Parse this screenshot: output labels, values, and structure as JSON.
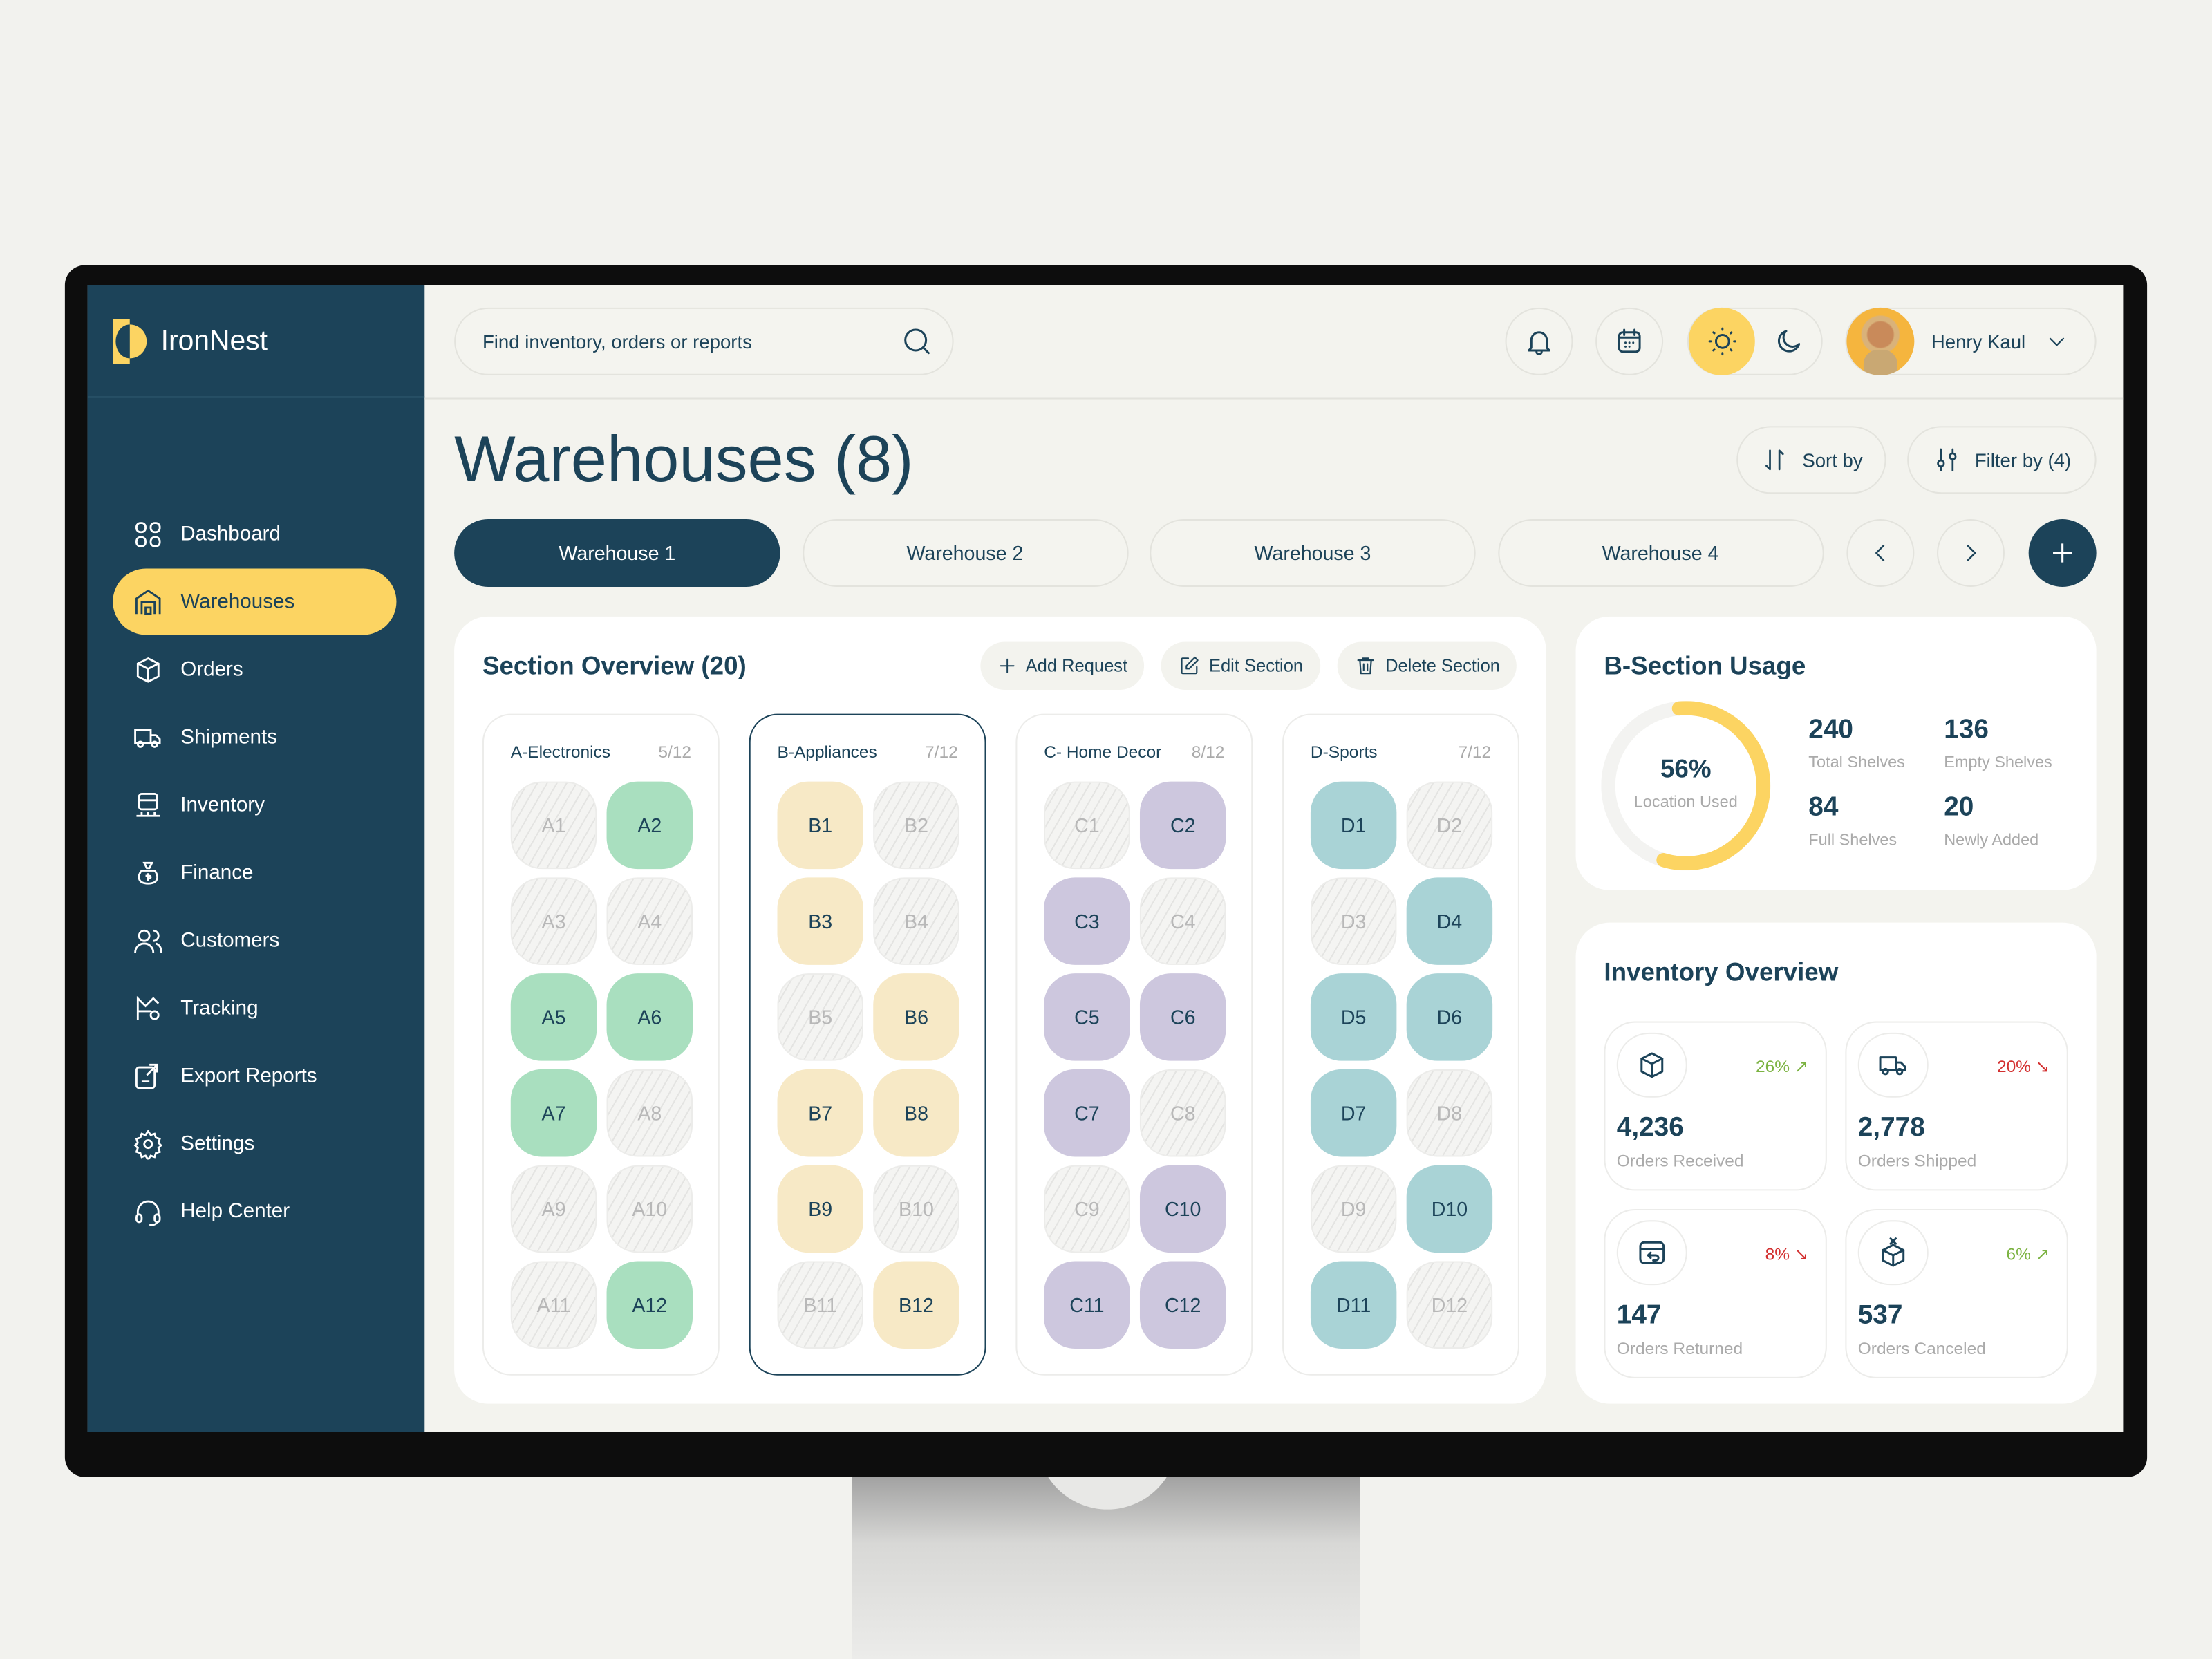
{
  "app": {
    "name": "IronNest",
    "brand_color": "#fcd462",
    "primary_color": "#1c4359"
  },
  "sidebar": {
    "items": [
      {
        "label": "Dashboard",
        "icon": "grid-icon"
      },
      {
        "label": "Warehouses",
        "icon": "warehouse-icon",
        "active": true
      },
      {
        "label": "Orders",
        "icon": "box-icon"
      },
      {
        "label": "Shipments",
        "icon": "truck-icon"
      },
      {
        "label": "Inventory",
        "icon": "inventory-icon"
      },
      {
        "label": "Finance",
        "icon": "money-bag-icon"
      },
      {
        "label": "Customers",
        "icon": "users-icon"
      },
      {
        "label": "Tracking",
        "icon": "tracking-icon"
      },
      {
        "label": "Export Reports",
        "icon": "export-icon"
      },
      {
        "label": "Settings",
        "icon": "gear-icon"
      },
      {
        "label": "Help Center",
        "icon": "headset-icon"
      }
    ]
  },
  "header": {
    "search_placeholder": "Find inventory, orders or reports",
    "user_name": "Henry Kaul",
    "theme": "light"
  },
  "page": {
    "title": "Warehouses (8)",
    "sort_label": "Sort by",
    "filter_label": "Filter by (4)",
    "tabs": [
      "Warehouse 1",
      "Warehouse 2",
      "Warehouse 3",
      "Warehouse 4"
    ],
    "active_tab": 0
  },
  "section_overview": {
    "title": "Section Overview (20)",
    "add_label": "Add Request",
    "edit_label": "Edit Section",
    "delete_label": "Delete Section",
    "sections": [
      {
        "name": "A-Electronics",
        "count": "5/12",
        "color": "#a9dfbf",
        "occupied": [
          "A2",
          "A5",
          "A6",
          "A7",
          "A12"
        ],
        "prefix": "A"
      },
      {
        "name": "B-Appliances",
        "count": "7/12",
        "color": "#f7e9c6",
        "occupied": [
          "B1",
          "B3",
          "B6",
          "B7",
          "B8",
          "B9",
          "B12"
        ],
        "prefix": "B",
        "selected": true
      },
      {
        "name": "C- Home Decor",
        "count": "8/12",
        "color": "#cdc7de",
        "occupied": [
          "C2",
          "C3",
          "C5",
          "C6",
          "C7",
          "C10",
          "C11",
          "C12"
        ],
        "prefix": "C"
      },
      {
        "name": "D-Sports",
        "count": "7/12",
        "color": "#a9d3d6",
        "occupied": [
          "D1",
          "D4",
          "D5",
          "D6",
          "D7",
          "D10",
          "D11"
        ],
        "prefix": "D"
      }
    ]
  },
  "usage": {
    "title": "B-Section Usage",
    "percent": 56,
    "percent_label": "56%",
    "caption": "Location Used",
    "stats": [
      {
        "value": "240",
        "label": "Total Shelves"
      },
      {
        "value": "136",
        "label": "Empty Shelves"
      },
      {
        "value": "84",
        "label": "Full Shelves"
      },
      {
        "value": "20",
        "label": "Newly Added"
      }
    ]
  },
  "inventory": {
    "title": "Inventory Overview",
    "tiles": [
      {
        "value": "4,236",
        "label": "Orders Received",
        "change": "26% ↗",
        "trend": "up",
        "icon": "package-icon"
      },
      {
        "value": "2,778",
        "label": "Orders Shipped",
        "change": "20% ↘",
        "trend": "down",
        "icon": "truck-icon"
      },
      {
        "value": "147",
        "label": "Orders Returned",
        "change": "8% ↘",
        "trend": "down",
        "icon": "return-box-icon"
      },
      {
        "value": "537",
        "label": "Orders Canceled",
        "change": "6% ↗",
        "trend": "up",
        "icon": "cancel-box-icon"
      }
    ],
    "up_color": "#7cb342",
    "down_color": "#d32f2f"
  }
}
